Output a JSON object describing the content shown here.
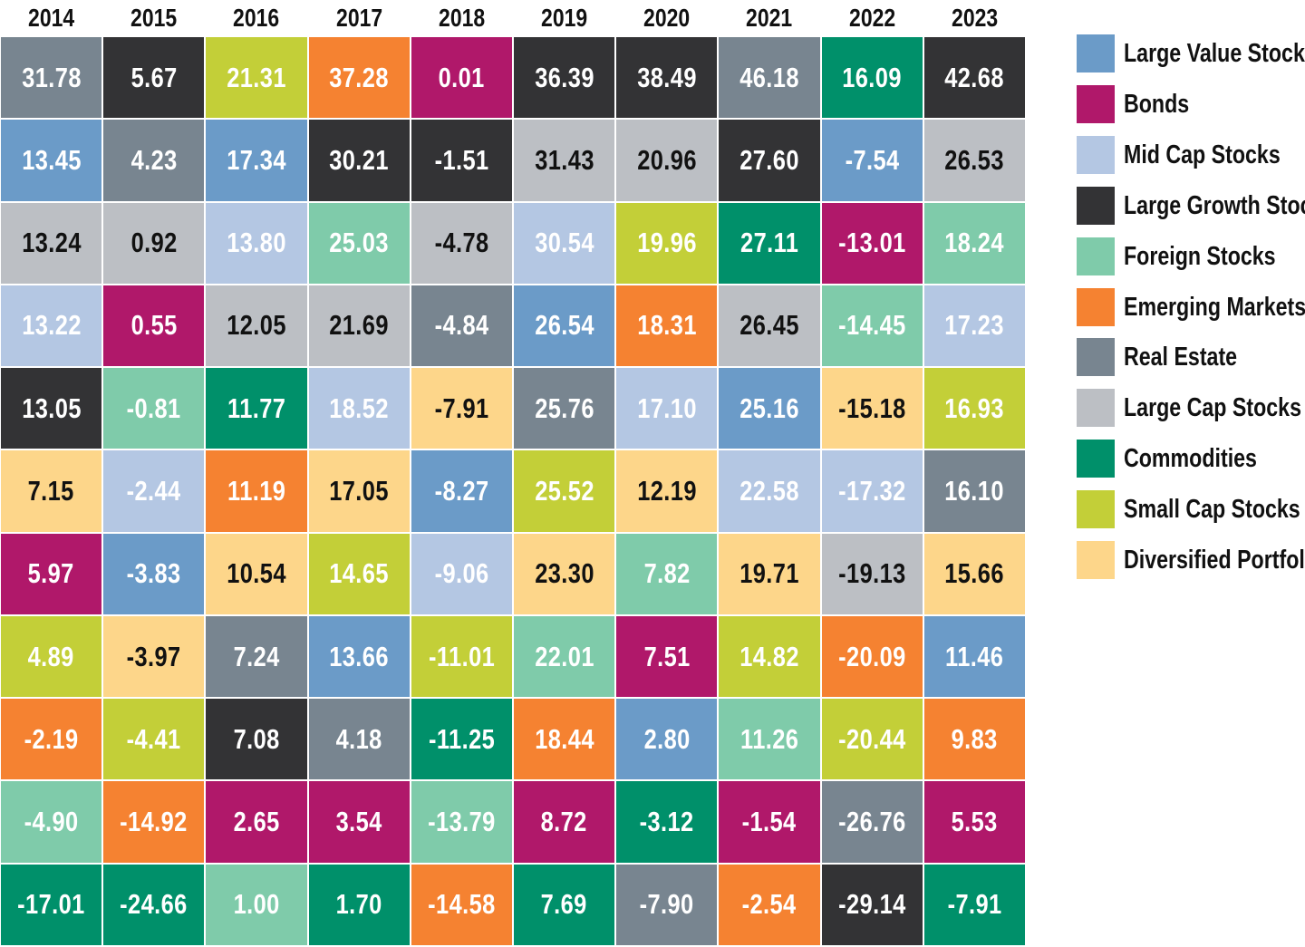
{
  "chart_data": {
    "type": "table",
    "title": "",
    "years": [
      "2014",
      "2015",
      "2016",
      "2017",
      "2018",
      "2019",
      "2020",
      "2021",
      "2022",
      "2023"
    ],
    "categories": [
      {
        "name": "Large Value Stocks",
        "color": "#6b9bc8",
        "text_color": "#ffffff"
      },
      {
        "name": "Bonds",
        "color": "#b0186a",
        "text_color": "#ffffff"
      },
      {
        "name": "Mid Cap Stocks",
        "color": "#b4c7e3",
        "text_color": "#ffffff"
      },
      {
        "name": "Large Growth Stocks",
        "color": "#333335",
        "text_color": "#ffffff"
      },
      {
        "name": "Foreign Stocks",
        "color": "#7fcbaa",
        "text_color": "#ffffff"
      },
      {
        "name": "Emerging Markets",
        "color": "#f58231",
        "text_color": "#ffffff"
      },
      {
        "name": "Real Estate",
        "color": "#788590",
        "text_color": "#ffffff"
      },
      {
        "name": "Large Cap Stocks",
        "color": "#bcbfc4",
        "text_color": "#111111"
      },
      {
        "name": "Commodities",
        "color": "#00906a",
        "text_color": "#ffffff"
      },
      {
        "name": "Small Cap Stocks",
        "color": "#c3cf38",
        "text_color": "#ffffff"
      },
      {
        "name": "Diversified Portfolio",
        "color": "#fdd68a",
        "text_color": "#111111"
      }
    ],
    "columns": [
      {
        "year": "2014",
        "cells": [
          {
            "value": "31.78",
            "category": "Real Estate"
          },
          {
            "value": "13.45",
            "category": "Large Value Stocks"
          },
          {
            "value": "13.24",
            "category": "Large Cap Stocks"
          },
          {
            "value": "13.22",
            "category": "Mid Cap Stocks"
          },
          {
            "value": "13.05",
            "category": "Large Growth Stocks"
          },
          {
            "value": "7.15",
            "category": "Diversified Portfolio"
          },
          {
            "value": "5.97",
            "category": "Bonds"
          },
          {
            "value": "4.89",
            "category": "Small Cap Stocks"
          },
          {
            "value": "-2.19",
            "category": "Emerging Markets"
          },
          {
            "value": "-4.90",
            "category": "Foreign Stocks"
          },
          {
            "value": "-17.01",
            "category": "Commodities"
          }
        ]
      },
      {
        "year": "2015",
        "cells": [
          {
            "value": "5.67",
            "category": "Large Growth Stocks"
          },
          {
            "value": "4.23",
            "category": "Real Estate"
          },
          {
            "value": "0.92",
            "category": "Large Cap Stocks"
          },
          {
            "value": "0.55",
            "category": "Bonds"
          },
          {
            "value": "-0.81",
            "category": "Foreign Stocks"
          },
          {
            "value": "-2.44",
            "category": "Mid Cap Stocks"
          },
          {
            "value": "-3.83",
            "category": "Large Value Stocks"
          },
          {
            "value": "-3.97",
            "category": "Diversified Portfolio"
          },
          {
            "value": "-4.41",
            "category": "Small Cap Stocks"
          },
          {
            "value": "-14.92",
            "category": "Emerging Markets"
          },
          {
            "value": "-24.66",
            "category": "Commodities"
          }
        ]
      },
      {
        "year": "2016",
        "cells": [
          {
            "value": "21.31",
            "category": "Small Cap Stocks"
          },
          {
            "value": "17.34",
            "category": "Large Value Stocks"
          },
          {
            "value": "13.80",
            "category": "Mid Cap Stocks"
          },
          {
            "value": "12.05",
            "category": "Large Cap Stocks"
          },
          {
            "value": "11.77",
            "category": "Commodities"
          },
          {
            "value": "11.19",
            "category": "Emerging Markets"
          },
          {
            "value": "10.54",
            "category": "Diversified Portfolio"
          },
          {
            "value": "7.24",
            "category": "Real Estate"
          },
          {
            "value": "7.08",
            "category": "Large Growth Stocks"
          },
          {
            "value": "2.65",
            "category": "Bonds"
          },
          {
            "value": "1.00",
            "category": "Foreign Stocks"
          }
        ]
      },
      {
        "year": "2017",
        "cells": [
          {
            "value": "37.28",
            "category": "Emerging Markets"
          },
          {
            "value": "30.21",
            "category": "Large Growth Stocks"
          },
          {
            "value": "25.03",
            "category": "Foreign Stocks"
          },
          {
            "value": "21.69",
            "category": "Large Cap Stocks"
          },
          {
            "value": "18.52",
            "category": "Mid Cap Stocks"
          },
          {
            "value": "17.05",
            "category": "Diversified Portfolio"
          },
          {
            "value": "14.65",
            "category": "Small Cap Stocks"
          },
          {
            "value": "13.66",
            "category": "Large Value Stocks"
          },
          {
            "value": "4.18",
            "category": "Real Estate"
          },
          {
            "value": "3.54",
            "category": "Bonds"
          },
          {
            "value": "1.70",
            "category": "Commodities"
          }
        ]
      },
      {
        "year": "2018",
        "cells": [
          {
            "value": "0.01",
            "category": "Bonds"
          },
          {
            "value": "-1.51",
            "category": "Large Growth Stocks"
          },
          {
            "value": "-4.78",
            "category": "Large Cap Stocks"
          },
          {
            "value": "-4.84",
            "category": "Real Estate"
          },
          {
            "value": "-7.91",
            "category": "Diversified Portfolio"
          },
          {
            "value": "-8.27",
            "category": "Large Value Stocks"
          },
          {
            "value": "-9.06",
            "category": "Mid Cap Stocks"
          },
          {
            "value": "-11.01",
            "category": "Small Cap Stocks"
          },
          {
            "value": "-11.25",
            "category": "Commodities"
          },
          {
            "value": "-13.79",
            "category": "Foreign Stocks"
          },
          {
            "value": "-14.58",
            "category": "Emerging Markets"
          }
        ]
      },
      {
        "year": "2019",
        "cells": [
          {
            "value": "36.39",
            "category": "Large Growth Stocks"
          },
          {
            "value": "31.43",
            "category": "Large Cap Stocks"
          },
          {
            "value": "30.54",
            "category": "Mid Cap Stocks"
          },
          {
            "value": "26.54",
            "category": "Large Value Stocks"
          },
          {
            "value": "25.76",
            "category": "Real Estate"
          },
          {
            "value": "25.52",
            "category": "Small Cap Stocks"
          },
          {
            "value": "23.30",
            "category": "Diversified Portfolio"
          },
          {
            "value": "22.01",
            "category": "Foreign Stocks"
          },
          {
            "value": "18.44",
            "category": "Emerging Markets"
          },
          {
            "value": "8.72",
            "category": "Bonds"
          },
          {
            "value": "7.69",
            "category": "Commodities"
          }
        ]
      },
      {
        "year": "2020",
        "cells": [
          {
            "value": "38.49",
            "category": "Large Growth Stocks"
          },
          {
            "value": "20.96",
            "category": "Large Cap Stocks"
          },
          {
            "value": "19.96",
            "category": "Small Cap Stocks"
          },
          {
            "value": "18.31",
            "category": "Emerging Markets"
          },
          {
            "value": "17.10",
            "category": "Mid Cap Stocks"
          },
          {
            "value": "12.19",
            "category": "Diversified Portfolio"
          },
          {
            "value": "7.82",
            "category": "Foreign Stocks"
          },
          {
            "value": "7.51",
            "category": "Bonds"
          },
          {
            "value": "2.80",
            "category": "Large Value Stocks"
          },
          {
            "value": "-3.12",
            "category": "Commodities"
          },
          {
            "value": "-7.90",
            "category": "Real Estate"
          }
        ]
      },
      {
        "year": "2021",
        "cells": [
          {
            "value": "46.18",
            "category": "Real Estate"
          },
          {
            "value": "27.60",
            "category": "Large Growth Stocks"
          },
          {
            "value": "27.11",
            "category": "Commodities"
          },
          {
            "value": "26.45",
            "category": "Large Cap Stocks"
          },
          {
            "value": "25.16",
            "category": "Large Value Stocks"
          },
          {
            "value": "22.58",
            "category": "Mid Cap Stocks"
          },
          {
            "value": "19.71",
            "category": "Diversified Portfolio"
          },
          {
            "value": "14.82",
            "category": "Small Cap Stocks"
          },
          {
            "value": "11.26",
            "category": "Foreign Stocks"
          },
          {
            "value": "-1.54",
            "category": "Bonds"
          },
          {
            "value": "-2.54",
            "category": "Emerging Markets"
          }
        ]
      },
      {
        "year": "2022",
        "cells": [
          {
            "value": "16.09",
            "category": "Commodities"
          },
          {
            "value": "-7.54",
            "category": "Large Value Stocks"
          },
          {
            "value": "-13.01",
            "category": "Bonds"
          },
          {
            "value": "-14.45",
            "category": "Foreign Stocks"
          },
          {
            "value": "-15.18",
            "category": "Diversified Portfolio"
          },
          {
            "value": "-17.32",
            "category": "Mid Cap Stocks"
          },
          {
            "value": "-19.13",
            "category": "Large Cap Stocks"
          },
          {
            "value": "-20.09",
            "category": "Emerging Markets"
          },
          {
            "value": "-20.44",
            "category": "Small Cap Stocks"
          },
          {
            "value": "-26.76",
            "category": "Real Estate"
          },
          {
            "value": "-29.14",
            "category": "Large Growth Stocks"
          }
        ]
      },
      {
        "year": "2023",
        "cells": [
          {
            "value": "42.68",
            "category": "Large Growth Stocks"
          },
          {
            "value": "26.53",
            "category": "Large Cap Stocks"
          },
          {
            "value": "18.24",
            "category": "Foreign Stocks"
          },
          {
            "value": "17.23",
            "category": "Mid Cap Stocks"
          },
          {
            "value": "16.93",
            "category": "Small Cap Stocks"
          },
          {
            "value": "16.10",
            "category": "Real Estate"
          },
          {
            "value": "15.66",
            "category": "Diversified Portfolio"
          },
          {
            "value": "11.46",
            "category": "Large Value Stocks"
          },
          {
            "value": "9.83",
            "category": "Emerging Markets"
          },
          {
            "value": "5.53",
            "category": "Bonds"
          },
          {
            "value": "-7.91",
            "category": "Commodities"
          }
        ]
      }
    ],
    "legend_position": "right"
  }
}
